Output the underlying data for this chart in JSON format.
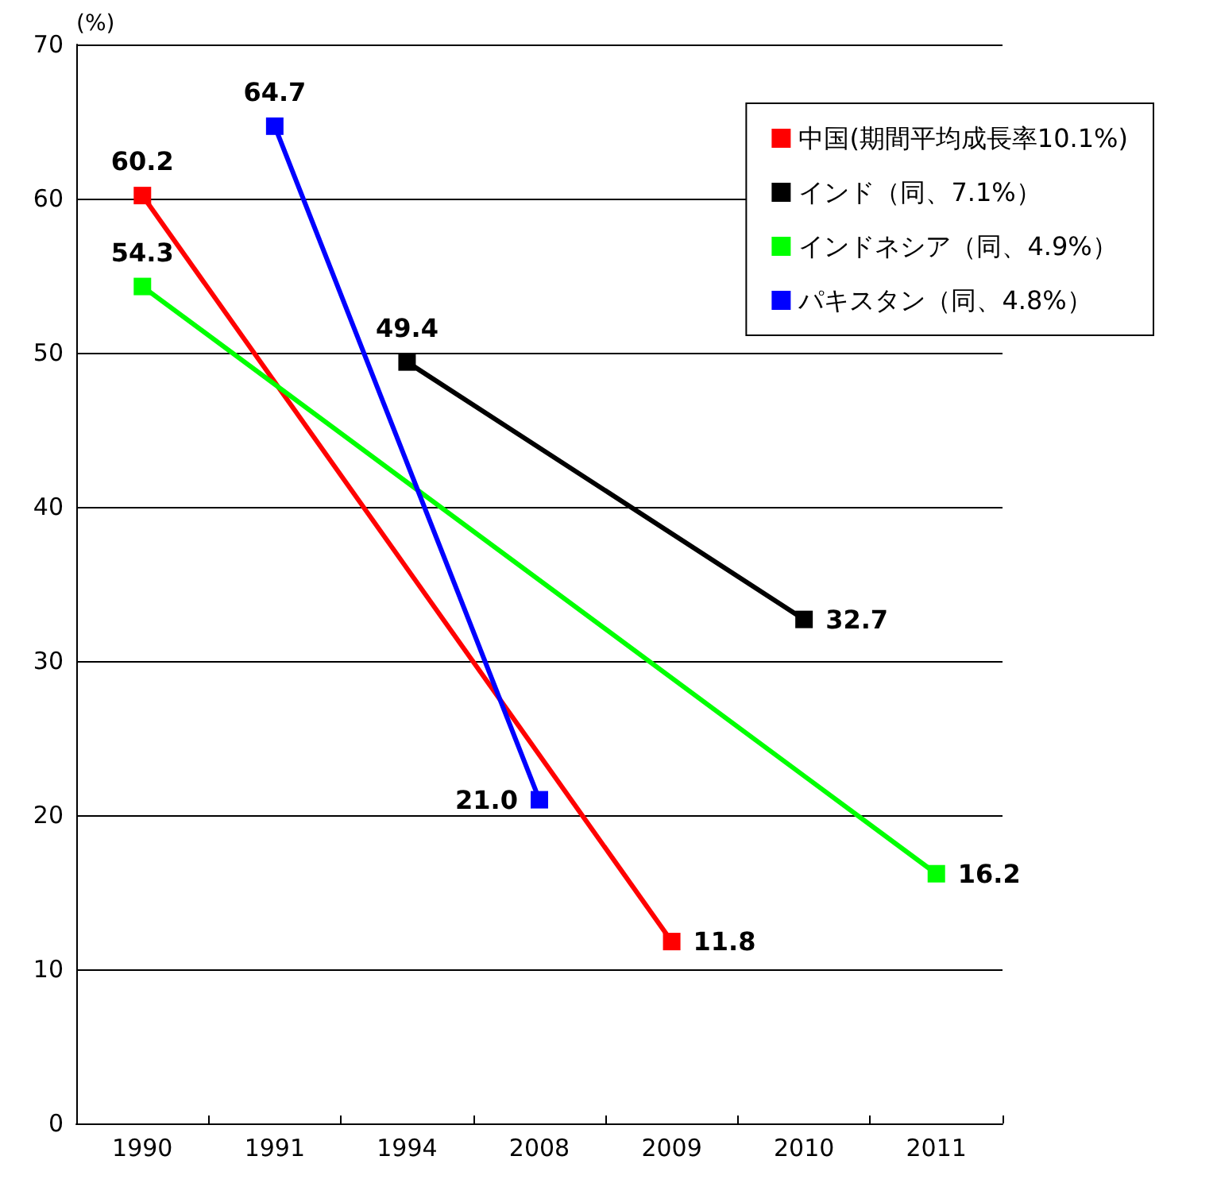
{
  "chart_data": {
    "type": "line",
    "ylabel": "(%)",
    "categories": [
      "1990",
      "1991",
      "1994",
      "2008",
      "2009",
      "2010",
      "2011"
    ],
    "series": [
      {
        "name": "中国(期間平均成長率10.1%)",
        "color": "#ff0000",
        "values": [
          60.2,
          null,
          null,
          null,
          11.8,
          null,
          null
        ],
        "value_labels": [
          "60.2",
          null,
          null,
          null,
          "11.8",
          null,
          null
        ]
      },
      {
        "name": "インド（同、7.1%）",
        "color": "#000000",
        "values": [
          null,
          null,
          49.4,
          null,
          null,
          32.7,
          null
        ],
        "value_labels": [
          null,
          null,
          "49.4",
          null,
          null,
          "32.7",
          null
        ]
      },
      {
        "name": "インドネシア（同、4.9%）",
        "color": "#00ff00",
        "values": [
          54.3,
          null,
          null,
          null,
          null,
          null,
          16.2
        ],
        "value_labels": [
          "54.3",
          null,
          null,
          null,
          null,
          null,
          "16.2"
        ]
      },
      {
        "name": "パキスタン（同、4.8%）",
        "color": "#0000ff",
        "values": [
          null,
          64.7,
          null,
          21.0,
          null,
          null,
          null
        ],
        "value_labels": [
          null,
          "64.7",
          null,
          "21.0",
          null,
          null,
          null
        ]
      }
    ],
    "ylim": [
      0,
      70
    ],
    "yticks": [
      0,
      10,
      20,
      30,
      40,
      50,
      60,
      70
    ],
    "grid": "y",
    "legend": "top right",
    "marker": "square",
    "line_style": "solid"
  }
}
